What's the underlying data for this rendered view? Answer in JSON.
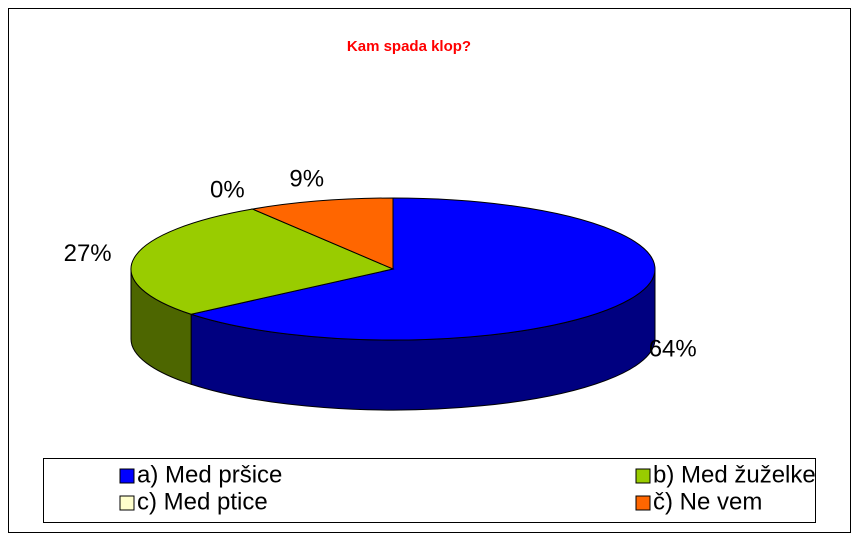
{
  "chart_data": {
    "type": "pie3d",
    "title": "Kam spada klop?",
    "categories": [
      "a) Med pršice",
      "b) Med žuželke",
      "c) Med ptice",
      "č) Ne vem"
    ],
    "values": [
      64,
      27,
      0,
      9
    ],
    "value_labels": [
      "64%",
      "27%",
      "0%",
      "9%"
    ],
    "colors": [
      "#0000ff",
      "#99cc00",
      "#ffffcc",
      "#ff6600"
    ],
    "side_colors": [
      "#000080",
      "#4d6600",
      "#808066",
      "#803300"
    ]
  }
}
